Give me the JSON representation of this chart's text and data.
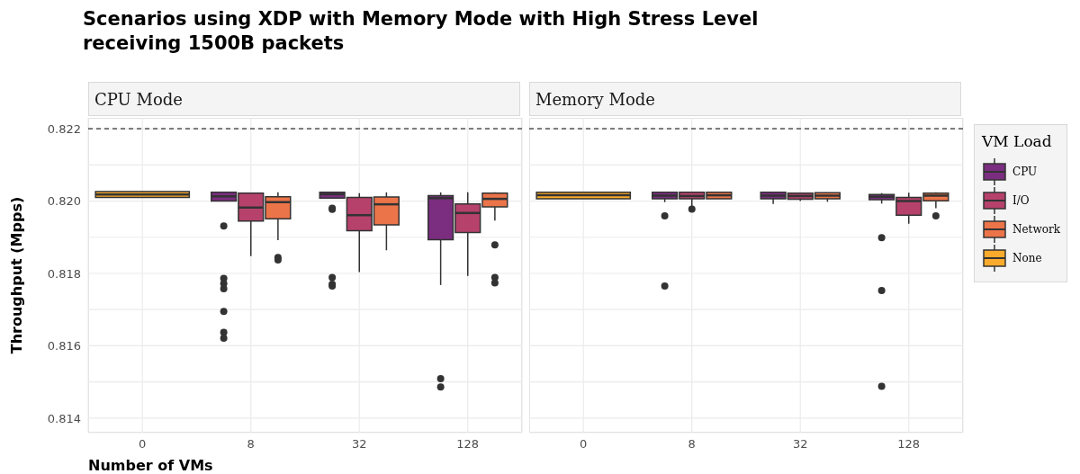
{
  "chart_data": [
    {
      "type": "box",
      "title": "Scenarios using XDP with Memory Mode with High Stress Level receiving 1500B packets",
      "subtitle": "CPU Mode",
      "xlabel": "Number of VMs",
      "ylabel": "Throughput (Mpps)",
      "categories": [
        "0",
        "8",
        "32",
        "128"
      ],
      "ylim": [
        0.8136,
        0.8223
      ],
      "yticks": [
        0.814,
        {
          "value": 0.815,
          "label": null
        },
        0.816,
        {
          "value": 0.817,
          "label": null
        },
        0.818,
        {
          "value": 0.819,
          "label": null
        },
        {
          "value": 0.82,
          "label": "0.820"
        },
        {
          "value": 0.821,
          "label": null
        },
        0.822
      ],
      "grid": true,
      "ref_lines": [
        {
          "axis": "y",
          "value": 0.822,
          "label": null,
          "color": "#000000",
          "line_style": "dashed"
        }
      ],
      "series": [
        {
          "color": "#7b2d80",
          "boxes": [
            null,
            {
              "low": 0.82,
              "q1": 0.82,
              "median": 0.82013,
              "q3": 0.82024,
              "high": 0.82024,
              "outliers": [
                0.81931,
                0.81786,
                0.81772,
                0.81758,
                0.81695,
                0.81637,
                0.81621
              ]
            },
            {
              "low": 0.82008,
              "q1": 0.82008,
              "median": 0.82019,
              "q3": 0.82024,
              "high": 0.82024,
              "outliers": [
                0.8198,
                0.81977,
                0.81789,
                0.8177,
                0.81765
              ]
            },
            {
              "low": 0.81768,
              "q1": 0.81893,
              "median": 0.82008,
              "q3": 0.82015,
              "high": 0.82024,
              "outliers": [
                0.81509,
                0.81486
              ]
            }
          ]
        },
        {
          "color": "#b6426b",
          "boxes": [
            null,
            {
              "low": 0.81848,
              "q1": 0.81945,
              "median": 0.81982,
              "q3": 0.82022,
              "high": 0.82022
            },
            {
              "low": 0.81804,
              "q1": 0.81918,
              "median": 0.81961,
              "q3": 0.8201,
              "high": 0.82022
            },
            {
              "low": 0.81793,
              "q1": 0.81913,
              "median": 0.81967,
              "q3": 0.81992,
              "high": 0.82024
            }
          ]
        },
        {
          "color": "#ec7449",
          "boxes": [
            null,
            {
              "low": 0.81892,
              "q1": 0.81951,
              "median": 0.81997,
              "q3": 0.82012,
              "high": 0.82024,
              "outliers": [
                0.81844,
                0.81837
              ]
            },
            {
              "low": 0.81864,
              "q1": 0.81934,
              "median": 0.81991,
              "q3": 0.82011,
              "high": 0.82024
            },
            {
              "low": 0.81946,
              "q1": 0.81984,
              "median": 0.82006,
              "q3": 0.82022,
              "high": 0.82024,
              "outliers": [
                0.81879,
                0.81789,
                0.81774
              ]
            }
          ]
        },
        {
          "color": "#fbab2b",
          "boxes": [
            {
              "low": 0.8201,
              "q1": 0.8201,
              "median": 0.82018,
              "q3": 0.82026,
              "high": 0.82026
            },
            null,
            null,
            null
          ]
        }
      ]
    },
    {
      "type": "box",
      "subtitle": "Memory Mode",
      "legend": "right",
      "legend_title": "VM Load",
      "tick_labels": "x",
      "categories": [
        "0",
        "8",
        "32",
        "128"
      ],
      "ylim": [
        0.8136,
        0.8223
      ],
      "yticks": [
        0.814,
        {
          "value": 0.815,
          "label": null
        },
        0.816,
        {
          "value": 0.817,
          "label": null
        },
        0.818,
        {
          "value": 0.819,
          "label": null
        },
        0.82,
        {
          "value": 0.821,
          "label": null
        },
        0.822
      ],
      "grid": true,
      "ref_lines": [
        {
          "axis": "y",
          "value": 0.822,
          "label": null,
          "color": "#000000",
          "line_style": "dashed"
        }
      ],
      "series": [
        {
          "name": "CPU",
          "color": "#7b2d80",
          "boxes": [
            null,
            {
              "low": 0.81997,
              "q1": 0.82006,
              "median": 0.82015,
              "q3": 0.82024,
              "high": 0.82024,
              "outliers": [
                0.81959,
                0.81765
              ]
            },
            {
              "low": 0.81992,
              "q1": 0.82006,
              "median": 0.82015,
              "q3": 0.82024,
              "high": 0.82024
            },
            {
              "low": 0.81993,
              "q1": 0.82004,
              "median": 0.82012,
              "q3": 0.82018,
              "high": 0.82022,
              "outliers": [
                0.81899,
                0.81753,
                0.81488
              ]
            }
          ]
        },
        {
          "name": "I/O",
          "color": "#b6426b",
          "boxes": [
            null,
            {
              "low": 0.81985,
              "q1": 0.82006,
              "median": 0.82014,
              "q3": 0.82024,
              "high": 0.82024,
              "outliers": [
                0.81978
              ]
            },
            {
              "low": 0.82,
              "q1": 0.82005,
              "median": 0.82014,
              "q3": 0.82022,
              "high": 0.82022
            },
            {
              "low": 0.81937,
              "q1": 0.81961,
              "median": 0.82,
              "q3": 0.8201,
              "high": 0.82023
            }
          ]
        },
        {
          "name": "Network",
          "color": "#ec7449",
          "boxes": [
            null,
            {
              "low": 0.82006,
              "q1": 0.82006,
              "median": 0.82016,
              "q3": 0.82024,
              "high": 0.82024
            },
            {
              "low": 0.81998,
              "q1": 0.82006,
              "median": 0.82015,
              "q3": 0.82023,
              "high": 0.82023
            },
            {
              "low": 0.8198,
              "q1": 0.82001,
              "median": 0.82015,
              "q3": 0.82022,
              "high": 0.82024,
              "outliers": [
                0.81959
              ]
            }
          ]
        },
        {
          "name": "None",
          "color": "#fbab2b",
          "boxes": [
            {
              "low": 0.82006,
              "q1": 0.82006,
              "median": 0.82016,
              "q3": 0.82024,
              "high": 0.82024
            },
            null,
            null,
            null
          ]
        }
      ]
    }
  ]
}
